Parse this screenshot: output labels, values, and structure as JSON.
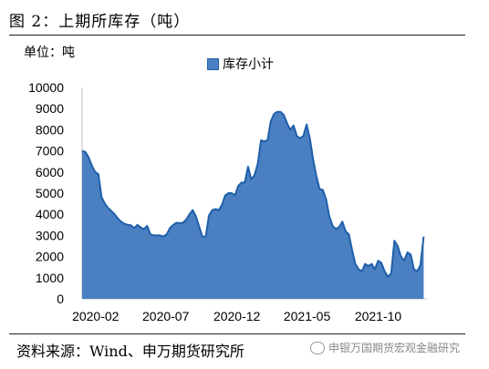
{
  "header": {
    "title": "图 2：上期所库存（吨）"
  },
  "unit_label": "单位：吨",
  "source": "资料来源：Wind、申万期货研究所",
  "watermark": {
    "text": "申银万国期货宏观金融研究",
    "icon": "wechat-icon"
  },
  "colors": {
    "area_fill": "#4a7fc1",
    "area_stroke": "#1f5fa9"
  },
  "chart_data": {
    "type": "area",
    "legend": [
      "库存小计"
    ],
    "legend_position": "top",
    "grid": false,
    "ylim": [
      0,
      10000
    ],
    "yticks": [
      0,
      1000,
      2000,
      3000,
      4000,
      5000,
      6000,
      7000,
      8000,
      9000,
      10000
    ],
    "xlim": [
      "2020-01-03",
      "2022-01-14"
    ],
    "xticks": [
      "2020-02",
      "2020-07",
      "2020-12",
      "2021-05",
      "2021-10"
    ],
    "series": [
      {
        "name": "库存小计",
        "x": [
          "2020-01-03",
          "2020-01-10",
          "2020-01-17",
          "2020-01-24",
          "2020-01-31",
          "2020-02-07",
          "2020-02-14",
          "2020-02-21",
          "2020-02-28",
          "2020-03-06",
          "2020-03-13",
          "2020-03-20",
          "2020-03-27",
          "2020-04-03",
          "2020-04-10",
          "2020-04-17",
          "2020-04-24",
          "2020-05-01",
          "2020-05-08",
          "2020-05-15",
          "2020-05-22",
          "2020-05-29",
          "2020-06-05",
          "2020-06-12",
          "2020-06-19",
          "2020-06-26",
          "2020-07-03",
          "2020-07-10",
          "2020-07-17",
          "2020-07-24",
          "2020-07-31",
          "2020-08-07",
          "2020-08-14",
          "2020-08-21",
          "2020-08-28",
          "2020-09-04",
          "2020-09-11",
          "2020-09-18",
          "2020-09-25",
          "2020-10-02",
          "2020-10-09",
          "2020-10-16",
          "2020-10-23",
          "2020-10-30",
          "2020-11-06",
          "2020-11-13",
          "2020-11-20",
          "2020-11-27",
          "2020-12-04",
          "2020-12-11",
          "2020-12-18",
          "2020-12-25",
          "2021-01-01",
          "2021-01-08",
          "2021-01-15",
          "2021-01-22",
          "2021-01-29",
          "2021-02-05",
          "2021-02-12",
          "2021-02-19",
          "2021-02-26",
          "2021-03-05",
          "2021-03-12",
          "2021-03-19",
          "2021-03-26",
          "2021-04-02",
          "2021-04-09",
          "2021-04-16",
          "2021-04-23",
          "2021-04-30",
          "2021-05-07",
          "2021-05-14",
          "2021-05-21",
          "2021-05-28",
          "2021-06-04",
          "2021-06-11",
          "2021-06-18",
          "2021-06-25",
          "2021-07-02",
          "2021-07-09",
          "2021-07-16",
          "2021-07-23",
          "2021-07-30",
          "2021-08-06",
          "2021-08-13",
          "2021-08-20",
          "2021-08-27",
          "2021-09-03",
          "2021-09-10",
          "2021-09-17",
          "2021-09-24",
          "2021-10-01",
          "2021-10-08",
          "2021-10-15",
          "2021-10-22",
          "2021-10-29",
          "2021-11-05",
          "2021-11-12",
          "2021-11-19",
          "2021-11-26",
          "2021-12-03",
          "2021-12-10",
          "2021-12-17",
          "2021-12-24",
          "2021-12-31",
          "2022-01-07",
          "2022-01-14"
        ],
        "values": [
          7000,
          6950,
          6700,
          6300,
          6000,
          5900,
          4800,
          4500,
          4300,
          4150,
          4000,
          3800,
          3650,
          3550,
          3500,
          3480,
          3350,
          3500,
          3380,
          3300,
          3450,
          3050,
          3000,
          3000,
          3000,
          2950,
          3050,
          3350,
          3500,
          3600,
          3580,
          3600,
          3750,
          4000,
          4200,
          3900,
          3400,
          2950,
          2950,
          3950,
          4200,
          4250,
          4200,
          4450,
          4900,
          5000,
          5000,
          4900,
          5350,
          5500,
          5500,
          6250,
          5650,
          5850,
          6400,
          7500,
          7450,
          7500,
          8400,
          8750,
          8850,
          8850,
          8700,
          8300,
          8000,
          8200,
          7700,
          7600,
          7700,
          8250,
          7600,
          6600,
          5800,
          5200,
          5150,
          4700,
          3900,
          3450,
          3300,
          3400,
          3650,
          3200,
          3050,
          2300,
          1650,
          1400,
          1300,
          1650,
          1550,
          1650,
          1400,
          1800,
          1700,
          1300,
          1050,
          1200,
          2750,
          2500,
          2000,
          1800,
          2200,
          2100,
          1400,
          1300,
          1600,
          2950,
          null
        ]
      }
    ]
  }
}
